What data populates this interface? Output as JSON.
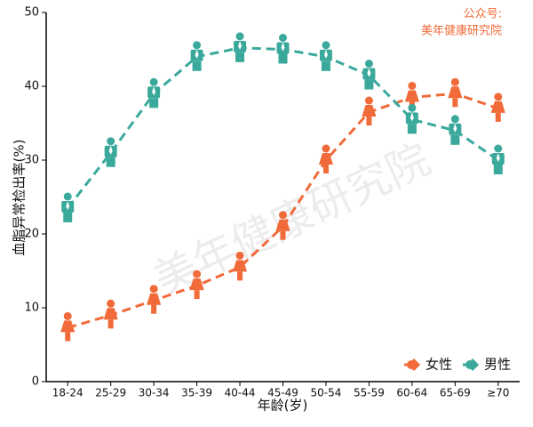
{
  "chart_data": {
    "type": "line",
    "y_label": "血脂异常检出率(%)",
    "x_label": "年龄(岁)",
    "annotation": [
      "公众号:",
      "美年健康研究院"
    ],
    "watermark": "美年健康研究院",
    "categories": [
      "18-24",
      "25-29",
      "30-34",
      "35-39",
      "40-44",
      "45-49",
      "50-54",
      "55-59",
      "60-64",
      "65-69",
      "≥70"
    ],
    "series": [
      {
        "name": "女性",
        "color": "#f06a3a",
        "values": [
          7.3,
          9,
          11,
          13,
          15.5,
          21,
          30,
          36.5,
          38.5,
          39,
          37
        ]
      },
      {
        "name": "男性",
        "color": "#3aa99b",
        "values": [
          23.5,
          31,
          39,
          44,
          45.2,
          45,
          44,
          41.5,
          35.5,
          34,
          30
        ]
      }
    ],
    "ylim": [
      0,
      50
    ],
    "yticks": [
      0,
      10,
      20,
      30,
      40,
      50
    ],
    "legend": "lower right"
  }
}
